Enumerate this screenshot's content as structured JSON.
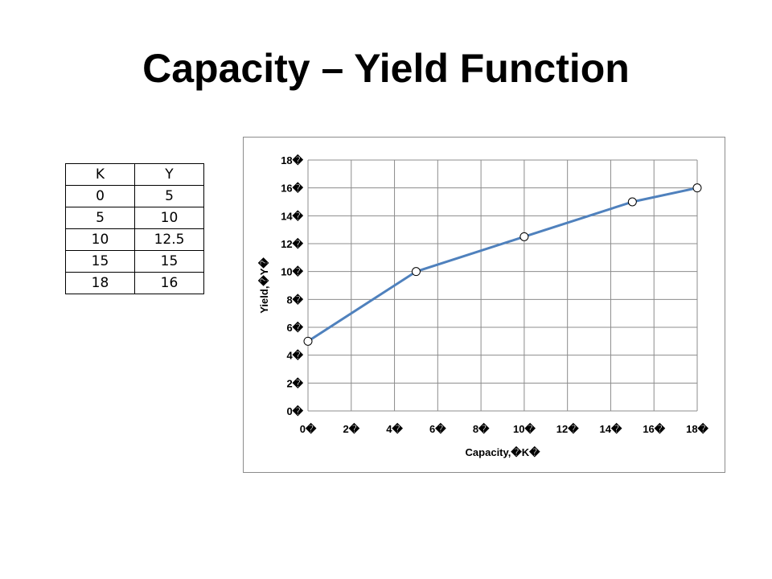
{
  "slide": {
    "title": "Capacity – Yield Function"
  },
  "table": {
    "headers": [
      "K",
      "Y"
    ],
    "rows": [
      [
        "0",
        "5"
      ],
      [
        "5",
        "10"
      ],
      [
        "10",
        "12.5"
      ],
      [
        "15",
        "15"
      ],
      [
        "18",
        "16"
      ]
    ]
  },
  "chart_data": {
    "type": "scatter",
    "title": "",
    "xlabel": "Capacity,�K�",
    "ylabel": "Yield,�Y�",
    "xlim": [
      0,
      18
    ],
    "ylim": [
      0,
      18
    ],
    "x_ticks": [
      0,
      2,
      4,
      6,
      8,
      10,
      12,
      14,
      16,
      18
    ],
    "y_ticks": [
      0,
      2,
      4,
      6,
      8,
      10,
      12,
      14,
      16,
      18
    ],
    "x_tick_labels": [
      "0�",
      "2�",
      "4�",
      "6�",
      "8�",
      "10�",
      "12�",
      "14�",
      "16�",
      "18�"
    ],
    "y_tick_labels": [
      "0�",
      "2�",
      "4�",
      "6�",
      "8�",
      "10�",
      "12�",
      "14�",
      "16�",
      "18�"
    ],
    "grid": true,
    "legend": "none",
    "series": [
      {
        "x": [
          0,
          5,
          10,
          15,
          18
        ],
        "y": [
          5,
          10,
          12.5,
          15,
          16
        ],
        "line_color": "#4f81bd",
        "marker_fill": "#ffffff",
        "marker_stroke": "#000000"
      }
    ]
  }
}
